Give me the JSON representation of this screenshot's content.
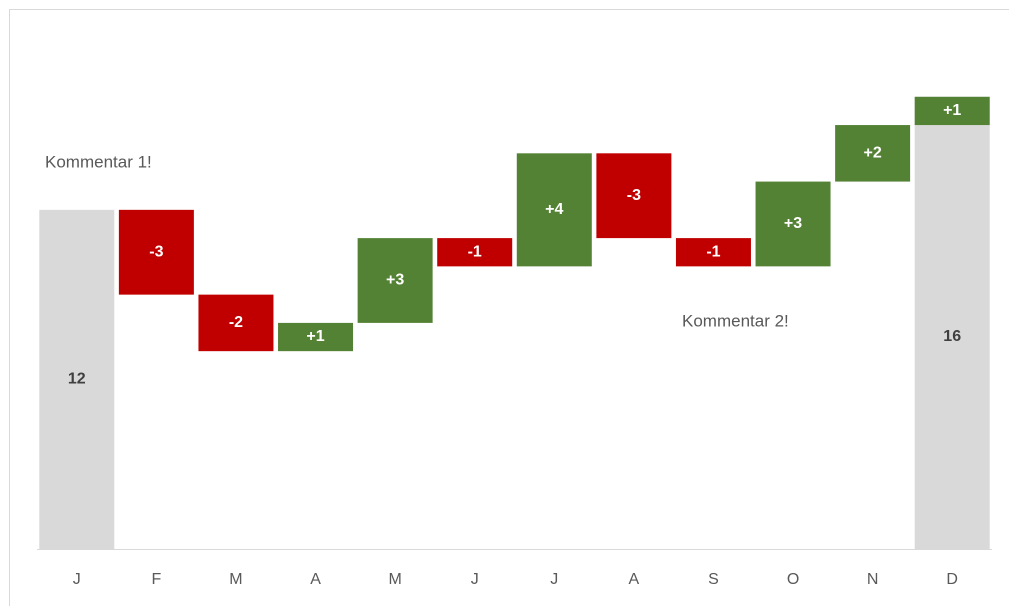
{
  "chart_data": {
    "type": "waterfall",
    "categories": [
      "J",
      "F",
      "M",
      "A",
      "M",
      "J",
      "J",
      "A",
      "S",
      "O",
      "N",
      "D"
    ],
    "values": [
      12,
      -3,
      -2,
      1,
      3,
      -1,
      4,
      -3,
      -1,
      3,
      2,
      1
    ],
    "value_labels": [
      "12",
      "-3",
      "-2",
      "+1",
      "+3",
      "-1",
      "+4",
      "-3",
      "-1",
      "+3",
      "+2",
      "+1"
    ],
    "total": 16,
    "colors": {
      "increase": "#548235",
      "decrease": "#c00000",
      "total": "#d9d9d9"
    },
    "ylim": [
      0,
      19
    ],
    "annotations": [
      "Kommentar 1!",
      "Kommentar 2!"
    ]
  }
}
